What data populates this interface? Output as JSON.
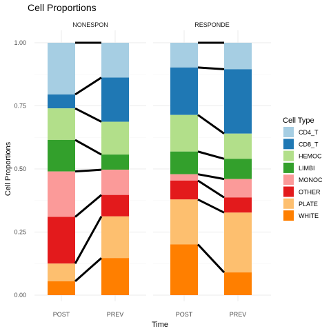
{
  "chart_data": {
    "type": "bar",
    "subtype": "stacked-proportion-alluvial",
    "title": "Cell Proportions",
    "xlabel": "Time",
    "ylabel": "Cell Proportions",
    "ylim": [
      0,
      1
    ],
    "y_ticks": [
      "0.00",
      "0.25",
      "0.50",
      "0.75",
      "1.00"
    ],
    "y_tick_values": [
      0,
      0.25,
      0.5,
      0.75,
      1.0
    ],
    "grid": true,
    "legend_position": "right",
    "legend_title": "Cell Type",
    "categories": [
      "POST",
      "PREV"
    ],
    "cell_types": [
      "CD4_T",
      "CD8_T",
      "HEMOC",
      "LIMBI",
      "MONOC",
      "OTHER",
      "PLATE",
      "WHITE"
    ],
    "colors": {
      "CD4_T": "#A6CEE3",
      "CD8_T": "#1F78B4",
      "HEMOC": "#B2DF8A",
      "LIMBI": "#33A02C",
      "MONOC": "#FB9A99",
      "OTHER": "#E31A1C",
      "PLATE": "#FDBF6F",
      "WHITE": "#FF7F00"
    },
    "panels": [
      {
        "name": "NONESPON",
        "series": [
          {
            "name": "CD4_T",
            "values": [
              0.205,
              0.138
            ]
          },
          {
            "name": "CD8_T",
            "values": [
              0.055,
              0.175
            ]
          },
          {
            "name": "HEMOC",
            "values": [
              0.125,
              0.13
            ]
          },
          {
            "name": "LIMBI",
            "values": [
              0.125,
              0.06
            ]
          },
          {
            "name": "MONOC",
            "values": [
              0.18,
              0.1
            ]
          },
          {
            "name": "OTHER",
            "values": [
              0.185,
              0.085
            ]
          },
          {
            "name": "PLATE",
            "values": [
              0.07,
              0.165
            ]
          },
          {
            "name": "WHITE",
            "values": [
              0.055,
              0.147
            ]
          }
        ]
      },
      {
        "name": "RESPONDE",
        "series": [
          {
            "name": "CD4_T",
            "values": [
              0.098,
              0.105
            ]
          },
          {
            "name": "CD8_T",
            "values": [
              0.188,
              0.255
            ]
          },
          {
            "name": "HEMOC",
            "values": [
              0.145,
              0.1
            ]
          },
          {
            "name": "LIMBI",
            "values": [
              0.09,
              0.08
            ]
          },
          {
            "name": "MONOC",
            "values": [
              0.025,
              0.073
            ]
          },
          {
            "name": "OTHER",
            "values": [
              0.075,
              0.06
            ]
          },
          {
            "name": "PLATE",
            "values": [
              0.178,
              0.237
            ]
          },
          {
            "name": "WHITE",
            "values": [
              0.201,
              0.09
            ]
          }
        ]
      }
    ]
  }
}
